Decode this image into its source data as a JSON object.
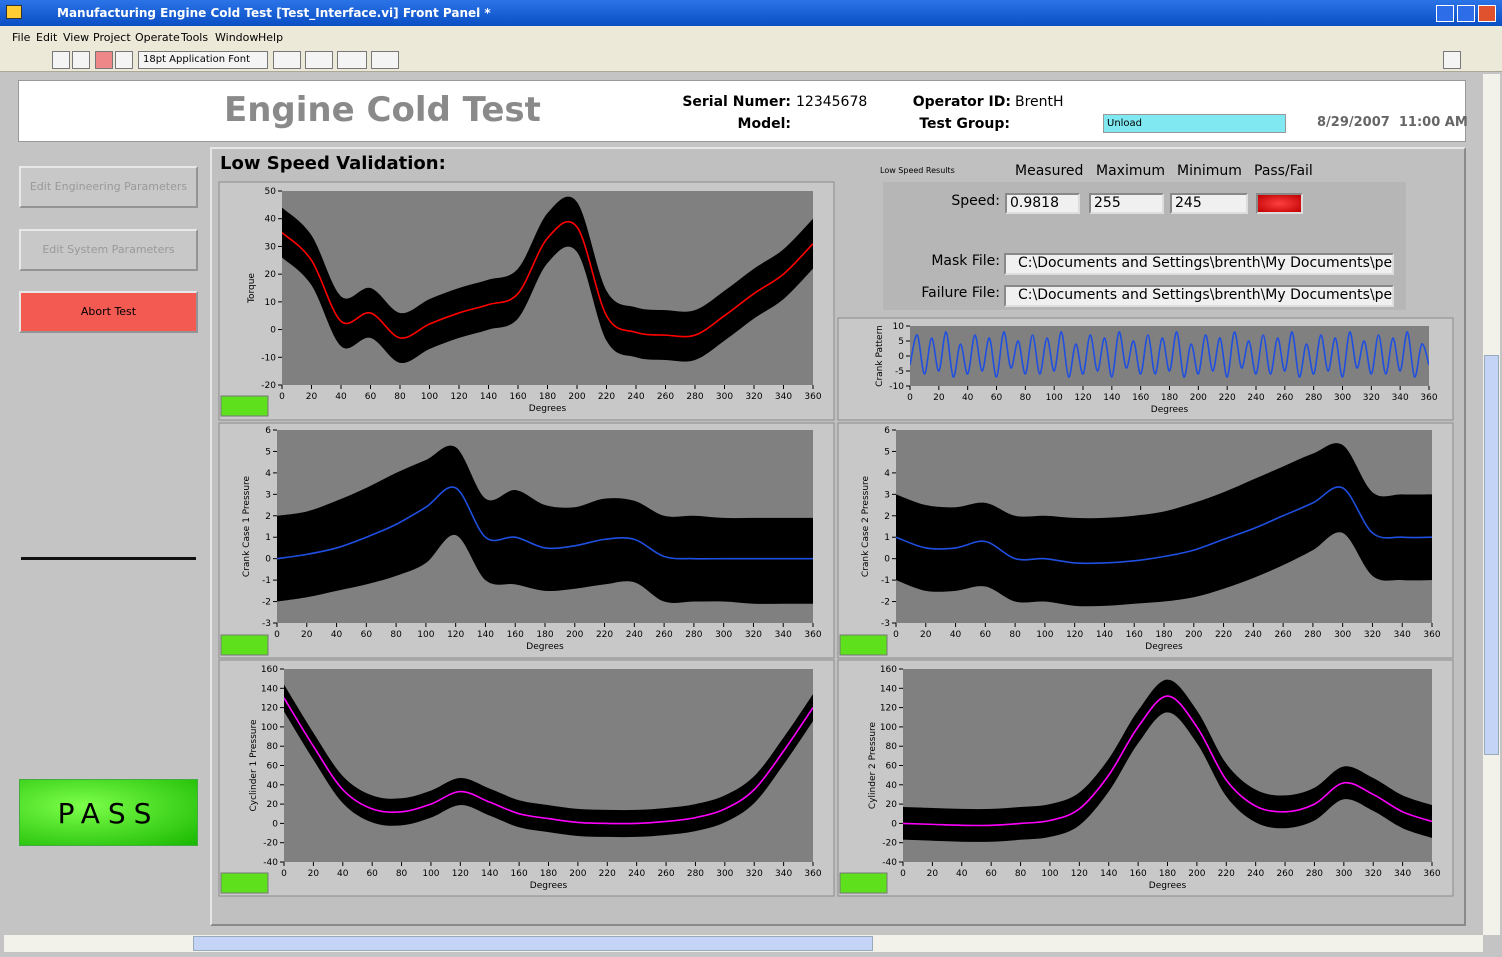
{
  "title_bar": "Manufacturing Engine Cold Test [Test_Interface.vi] Front Panel *",
  "menu": [
    "File",
    "Edit",
    "View",
    "Project",
    "Operate",
    "Tools",
    "Window",
    "Help"
  ],
  "toolbar": {
    "font": "18pt Application Font"
  },
  "header": {
    "title": "Engine Cold Test",
    "serial_label": "Serial Numer:",
    "serial": "12345678",
    "model_label": "Model:",
    "operator_label": "Operator ID:",
    "operator": "BrentH",
    "test_group_label": "Test Group:",
    "test_group": "Unload",
    "datetime": "8/29/2007  11:00 AM"
  },
  "buttons": [
    "Edit Engineering Parameters",
    "Edit System Parameters",
    "Abort Test"
  ],
  "status": "PASS",
  "section_title": "Low Speed Validation:",
  "results": {
    "caption": "Low Speed Results",
    "columns": [
      "Measured",
      "Maximum",
      "Minimum",
      "Pass/Fail"
    ],
    "speed_label": "Speed:",
    "measured": "0.9818",
    "maximum": "255",
    "minimum": "245",
    "mask_label": "Mask File:",
    "mask_path": "C:\\Documents and Settings\\brenth\\My Documents\\personal",
    "failure_label": "Failure File:",
    "failure_path": "C:\\Documents and Settings\\brenth\\My Documents\\personal"
  },
  "chart_data": [
    {
      "type": "line",
      "y_label": "Torque",
      "x_label": "Degrees",
      "xlim": [
        0,
        360
      ],
      "xticks": [
        0,
        20,
        40,
        60,
        80,
        100,
        120,
        140,
        160,
        180,
        200,
        220,
        240,
        260,
        280,
        300,
        320,
        340,
        360
      ],
      "ylim": [
        -20,
        50
      ],
      "yticks": [
        -20,
        -10,
        0,
        10,
        20,
        30,
        40,
        50
      ],
      "x": [
        0,
        20,
        40,
        60,
        80,
        100,
        120,
        140,
        160,
        180,
        200,
        220,
        240,
        260,
        280,
        300,
        320,
        340,
        360
      ],
      "series": [
        {
          "color": "#ff0000",
          "values": [
            35,
            25,
            3,
            6,
            -3,
            2,
            6,
            9,
            13,
            33,
            37,
            5,
            -1,
            -2,
            -2,
            5,
            13,
            20,
            31
          ],
          "upper": [
            44,
            34,
            12,
            15,
            6,
            11,
            15,
            18,
            22,
            42,
            46,
            14,
            8,
            7,
            7,
            14,
            22,
            29,
            40
          ],
          "lower": [
            26,
            16,
            -6,
            -3,
            -12,
            -7,
            -3,
            0,
            4,
            24,
            28,
            -4,
            -10,
            -11,
            -11,
            -4,
            4,
            11,
            22
          ]
        }
      ]
    },
    {
      "type": "line",
      "y_label": "Crank Pattern",
      "x_label": "Degrees",
      "xlim": [
        0,
        360
      ],
      "xticks": [
        0,
        20,
        40,
        60,
        80,
        100,
        120,
        140,
        160,
        180,
        200,
        220,
        240,
        260,
        280,
        300,
        320,
        340,
        360
      ],
      "ylim": [
        -10,
        10
      ],
      "yticks": [
        -10,
        -5,
        0,
        5,
        10
      ],
      "x": [
        0,
        5,
        10,
        15,
        20,
        25,
        30,
        35,
        40,
        45,
        50,
        55,
        60,
        65,
        70,
        75,
        80,
        85,
        90,
        95,
        100,
        105,
        110,
        115,
        120,
        125,
        130,
        135,
        140,
        145,
        150,
        155,
        160,
        165,
        170,
        175,
        180,
        185,
        190,
        195,
        200,
        205,
        210,
        215,
        220,
        225,
        230,
        235,
        240,
        245,
        250,
        255,
        260,
        265,
        270,
        275,
        280,
        285,
        290,
        295,
        300,
        305,
        310,
        315,
        320,
        325,
        330,
        335,
        340,
        345,
        350,
        355,
        360
      ],
      "series": [
        {
          "color": "#1f4fe0",
          "values": [
            -3,
            7,
            -6,
            6,
            -5,
            8,
            -7,
            4,
            -6,
            7,
            -5,
            6,
            -7,
            8,
            -4,
            5,
            -6,
            7,
            -6,
            6,
            -5,
            8,
            -7,
            4,
            -6,
            7,
            -5,
            6,
            -7,
            8,
            -4,
            5,
            -6,
            7,
            -6,
            6,
            -5,
            8,
            -7,
            4,
            -6,
            7,
            -5,
            6,
            -7,
            8,
            -4,
            5,
            -6,
            7,
            -6,
            6,
            -5,
            8,
            -7,
            4,
            -6,
            7,
            -5,
            6,
            -7,
            8,
            -4,
            5,
            -6,
            7,
            -6,
            6,
            -5,
            8,
            -7,
            4,
            -3
          ]
        }
      ]
    },
    {
      "type": "line",
      "y_label": "Crank Case 1 Pressure",
      "x_label": "Degrees",
      "xlim": [
        0,
        360
      ],
      "xticks": [
        0,
        20,
        40,
        60,
        80,
        100,
        120,
        140,
        160,
        180,
        200,
        220,
        240,
        260,
        280,
        300,
        320,
        340,
        360
      ],
      "ylim": [
        -3,
        6
      ],
      "yticks": [
        -3,
        -2,
        -1,
        0,
        1,
        2,
        3,
        4,
        5,
        6
      ],
      "x": [
        0,
        20,
        40,
        60,
        80,
        100,
        120,
        140,
        160,
        180,
        200,
        220,
        240,
        260,
        280,
        300,
        320,
        340,
        360
      ],
      "series": [
        {
          "color": "#1f4fe0",
          "values": [
            0,
            0.2,
            0.5,
            1.0,
            1.6,
            2.4,
            3.3,
            1.0,
            1.0,
            0.5,
            0.6,
            0.9,
            0.9,
            0.1,
            0,
            0,
            0,
            0,
            0
          ],
          "upper": [
            2,
            2.2,
            2.7,
            3.3,
            4.0,
            4.6,
            5.2,
            2.8,
            3.2,
            2.5,
            2.4,
            2.8,
            2.7,
            2.0,
            2,
            1.9,
            1.9,
            1.9,
            1.9
          ],
          "lower": [
            -2,
            -1.8,
            -1.5,
            -1.2,
            -0.8,
            -0.2,
            1.1,
            -1.0,
            -1.2,
            -1.5,
            -1.4,
            -1.2,
            -1.1,
            -2,
            -2,
            -2,
            -2.1,
            -2.1,
            -2.1
          ]
        }
      ]
    },
    {
      "type": "line",
      "y_label": "Crank Case 2 Pressure",
      "x_label": "Degrees",
      "xlim": [
        0,
        360
      ],
      "xticks": [
        0,
        20,
        40,
        60,
        80,
        100,
        120,
        140,
        160,
        180,
        200,
        220,
        240,
        260,
        280,
        300,
        320,
        340,
        360
      ],
      "ylim": [
        -3,
        6
      ],
      "yticks": [
        -3,
        -2,
        -1,
        0,
        1,
        2,
        3,
        4,
        5,
        6
      ],
      "x": [
        0,
        20,
        40,
        60,
        80,
        100,
        120,
        140,
        160,
        180,
        200,
        220,
        240,
        260,
        280,
        300,
        320,
        340,
        360
      ],
      "series": [
        {
          "color": "#1f4fe0",
          "values": [
            1.0,
            0.5,
            0.5,
            0.8,
            0,
            0,
            -0.2,
            -0.2,
            -0.1,
            0.1,
            0.4,
            0.9,
            1.4,
            2.0,
            2.6,
            3.3,
            1.2,
            1.0,
            1.0
          ],
          "upper": [
            3,
            2.5,
            2.4,
            2.6,
            2.0,
            2.0,
            1.9,
            1.9,
            2.0,
            2.2,
            2.6,
            3.1,
            3.7,
            4.3,
            4.9,
            5.3,
            3.1,
            3.0,
            3.0
          ],
          "lower": [
            -1,
            -1.5,
            -1.5,
            -1.3,
            -2.0,
            -2.0,
            -2.2,
            -2.2,
            -2.1,
            -2.0,
            -1.8,
            -1.4,
            -0.9,
            -0.3,
            0.4,
            1.2,
            -0.8,
            -1.0,
            -1.0
          ]
        }
      ]
    },
    {
      "type": "line",
      "y_label": "Cyclinder 1 Pressure",
      "x_label": "Degrees",
      "xlim": [
        0,
        360
      ],
      "xticks": [
        0,
        20,
        40,
        60,
        80,
        100,
        120,
        140,
        160,
        180,
        200,
        220,
        240,
        260,
        280,
        300,
        320,
        340,
        360
      ],
      "ylim": [
        -40,
        160
      ],
      "yticks": [
        -40,
        -20,
        0,
        20,
        40,
        60,
        80,
        100,
        120,
        140,
        160
      ],
      "x": [
        0,
        20,
        40,
        60,
        80,
        100,
        120,
        140,
        160,
        180,
        200,
        220,
        240,
        260,
        280,
        300,
        320,
        340,
        360
      ],
      "series": [
        {
          "color": "#ff00ff",
          "values": [
            130,
            80,
            35,
            15,
            12,
            20,
            33,
            22,
            10,
            5,
            1,
            0,
            0,
            2,
            6,
            15,
            35,
            75,
            120
          ],
          "upper": [
            144,
            94,
            49,
            29,
            26,
            34,
            47,
            36,
            24,
            19,
            15,
            14,
            14,
            16,
            20,
            29,
            49,
            89,
            134
          ],
          "lower": [
            116,
            66,
            21,
            1,
            -2,
            6,
            19,
            8,
            -4,
            -9,
            -13,
            -14,
            -14,
            -12,
            -8,
            1,
            21,
            61,
            106
          ]
        }
      ]
    },
    {
      "type": "line",
      "y_label": "Cylinder 2 Pressure",
      "x_label": "Degrees",
      "xlim": [
        0,
        360
      ],
      "xticks": [
        0,
        20,
        40,
        60,
        80,
        100,
        120,
        140,
        160,
        180,
        200,
        220,
        240,
        260,
        280,
        300,
        320,
        340,
        360
      ],
      "ylim": [
        -40,
        160
      ],
      "yticks": [
        -40,
        -20,
        0,
        20,
        40,
        60,
        80,
        100,
        120,
        140,
        160
      ],
      "x": [
        0,
        20,
        40,
        60,
        80,
        100,
        120,
        140,
        160,
        180,
        200,
        220,
        240,
        260,
        280,
        300,
        320,
        340,
        360
      ],
      "series": [
        {
          "color": "#ff00ff",
          "values": [
            0,
            -1,
            -2,
            -2,
            0,
            3,
            15,
            50,
            100,
            132,
            100,
            45,
            18,
            12,
            20,
            42,
            30,
            12,
            2
          ],
          "upper": [
            17,
            16,
            15,
            15,
            17,
            20,
            32,
            67,
            117,
            149,
            117,
            62,
            35,
            29,
            37,
            59,
            47,
            29,
            19
          ],
          "lower": [
            -17,
            -18,
            -19,
            -19,
            -17,
            -14,
            -2,
            33,
            83,
            115,
            83,
            28,
            1,
            -5,
            3,
            25,
            13,
            -5,
            -15
          ]
        }
      ]
    }
  ]
}
